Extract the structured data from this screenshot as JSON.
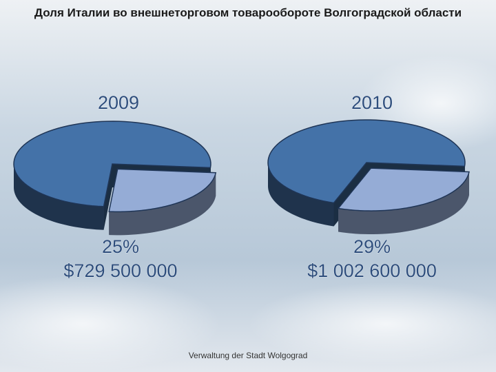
{
  "title": "Доля Италии во внешнеторговом товарообороте Волгоградской области",
  "footer": "Verwaltung der Stadt Wolgograd",
  "chart_data": [
    {
      "type": "pie",
      "title": "2009",
      "values": [
        75,
        25
      ],
      "colors": [
        "#4472a8",
        "#95acd6"
      ],
      "value_labels": [
        null,
        "25%"
      ],
      "amounts": [
        null,
        729500000
      ],
      "amount_labels": [
        null,
        "$729 500 000"
      ]
    },
    {
      "type": "pie",
      "title": "2010",
      "values": [
        71,
        29
      ],
      "colors": [
        "#4472a8",
        "#95acd6"
      ],
      "value_labels": [
        null,
        "29%"
      ],
      "amounts": [
        null,
        1002600000
      ],
      "amount_labels": [
        null,
        "$1 002 600 000"
      ]
    }
  ]
}
